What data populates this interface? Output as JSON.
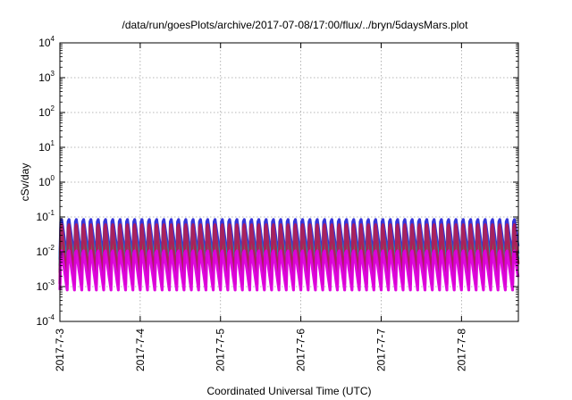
{
  "chart_data": {
    "type": "line",
    "title": "/data/run/goesPlots/archive/2017-07-08/17:00/flux/../bryn/5daysMars.plot",
    "xlabel": "Coordinated Universal Time (UTC)",
    "ylabel": "cSv/day",
    "y_scale": "log",
    "ylim": [
      0.0001,
      10000
    ],
    "y_ticks": [
      {
        "base": "10",
        "exp": "-4",
        "value": 0.0001
      },
      {
        "base": "10",
        "exp": "-3",
        "value": 0.001
      },
      {
        "base": "10",
        "exp": "-2",
        "value": 0.01
      },
      {
        "base": "10",
        "exp": "-1",
        "value": 0.1
      },
      {
        "base": "10",
        "exp": "0",
        "value": 1
      },
      {
        "base": "10",
        "exp": "1",
        "value": 10
      },
      {
        "base": "10",
        "exp": "2",
        "value": 100
      },
      {
        "base": "10",
        "exp": "3",
        "value": 1000
      },
      {
        "base": "10",
        "exp": "4",
        "value": 10000
      }
    ],
    "xlim": [
      "2017-07-03",
      "2017-07-08 17:00"
    ],
    "x_ticks": [
      "2017-7-3",
      "2017-7-4",
      "2017-7-5",
      "2017-7-6",
      "2017-7-7",
      "2017-7-8"
    ],
    "grid": true,
    "legend": "none",
    "cycles_per_day": 11,
    "series": [
      {
        "color": "#2a2ad8",
        "peak": 0.12,
        "trough": 0.006
      },
      {
        "color": "#00b0b0",
        "peak": 0.06,
        "trough": 0.004
      },
      {
        "color": "#00cccc",
        "peak": 0.035,
        "trough": 0.003
      },
      {
        "color": "#4a9a4a",
        "peak": 0.025,
        "trough": 0.0025
      },
      {
        "color": "#b01a5a",
        "peak": 0.1,
        "trough": 0.0012
      },
      {
        "color": "#dd00dd",
        "peak": 0.015,
        "trough": 0.0008
      }
    ]
  }
}
